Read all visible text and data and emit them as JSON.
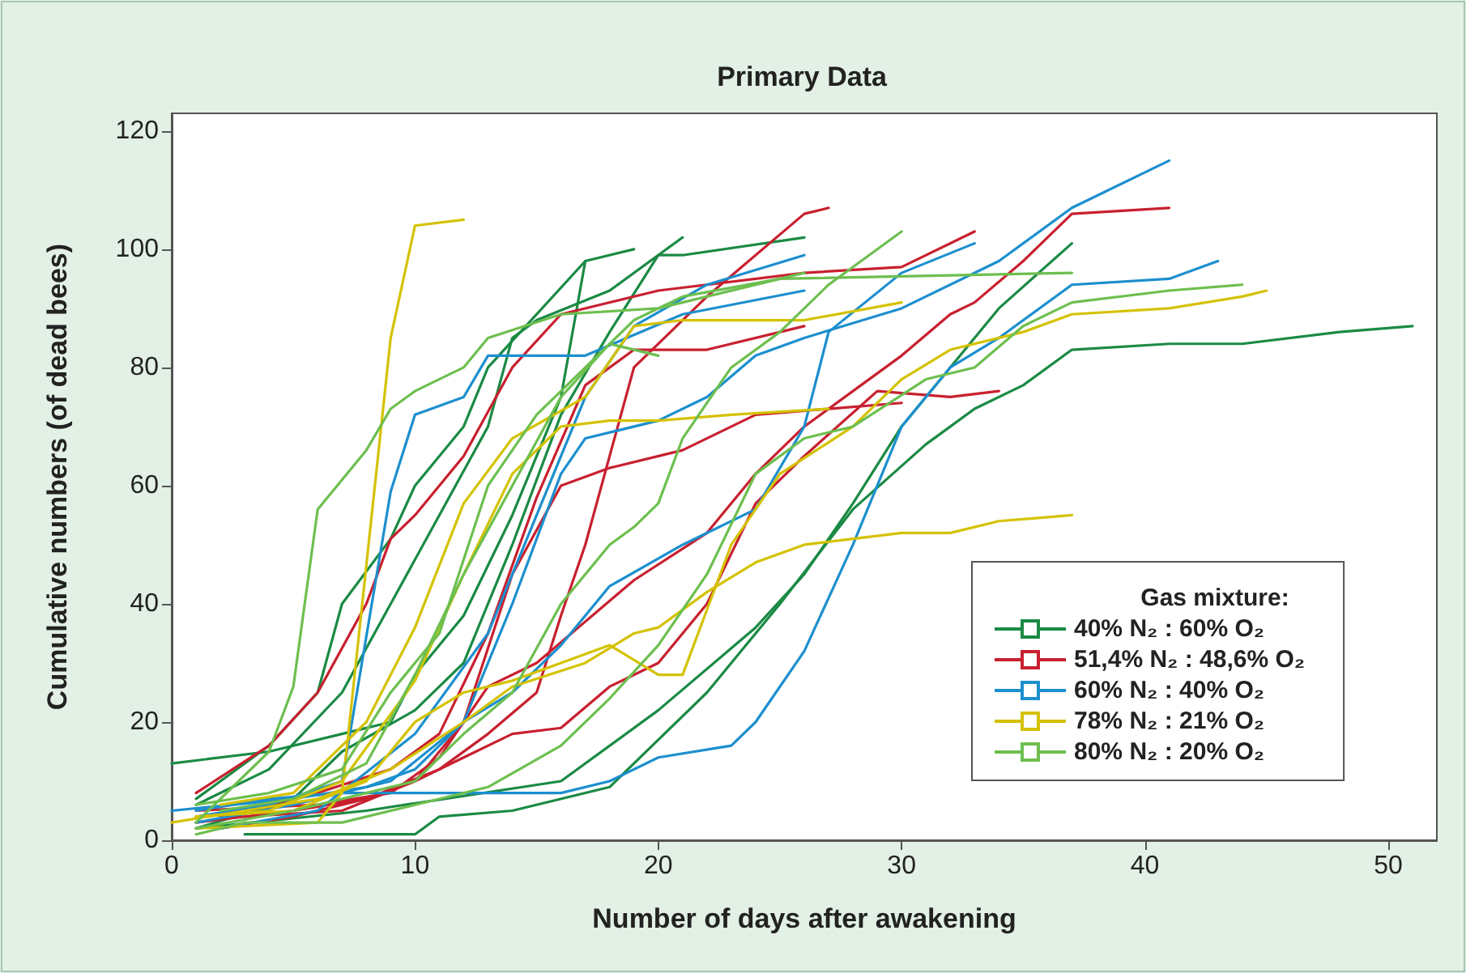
{
  "chart_data": {
    "type": "line",
    "title": "Primary Data",
    "xlabel": "Number of days after awakening",
    "ylabel": "Cumulative numbers (of dead bees)",
    "legend_title": "Gas mixture:",
    "legend": "bottom right",
    "grid": false,
    "line_style": "solid",
    "xlim": [
      0,
      52
    ],
    "xticks": [
      0,
      10,
      20,
      30,
      40,
      50
    ],
    "ylim": [
      0,
      123
    ],
    "yticks": [
      0,
      20,
      40,
      60,
      80,
      100,
      120
    ],
    "series": [
      {
        "name": "40% N₂ : 60% O₂",
        "color": "#1a8a44",
        "x": [
          3,
          10,
          11,
          14,
          18,
          20,
          22,
          25,
          28,
          31,
          33,
          35,
          37,
          41,
          44,
          48,
          51
        ],
        "values": [
          1,
          1,
          4,
          5,
          9,
          17,
          25,
          40,
          56,
          67,
          73,
          77,
          83,
          84,
          84,
          86,
          87
        ]
      },
      {
        "color": "#1a8a44",
        "x": [
          1,
          8,
          16,
          20,
          24,
          26,
          28,
          30,
          32,
          34,
          37
        ],
        "values": [
          2,
          5,
          10,
          22,
          36,
          45,
          57,
          70,
          80,
          90,
          101
        ]
      },
      {
        "color": "#1a8a44",
        "x": [
          0,
          4,
          7,
          9,
          10,
          12,
          14,
          16,
          17,
          19
        ],
        "values": [
          13,
          15,
          18,
          20,
          28,
          38,
          55,
          75,
          98,
          100
        ]
      },
      {
        "color": "#1a8a44",
        "x": [
          1,
          4,
          7,
          9,
          11,
          13,
          14,
          15,
          18,
          21
        ],
        "values": [
          6,
          12,
          25,
          40,
          55,
          70,
          85,
          88,
          93,
          102
        ]
      },
      {
        "color": "#1a8a44",
        "x": [
          1,
          5,
          7,
          10,
          12,
          14,
          16,
          18,
          20,
          21,
          26
        ],
        "values": [
          2,
          7,
          15,
          22,
          30,
          50,
          72,
          86,
          99,
          99,
          102
        ]
      },
      {
        "color": "#1a8a44",
        "x": [
          1,
          4,
          6,
          7,
          9,
          10,
          12,
          13,
          17
        ],
        "values": [
          7,
          16,
          25,
          40,
          51,
          60,
          70,
          80,
          98
        ]
      },
      {
        "name": "51,4% N₂ : 48,6% O₂",
        "color": "#c8202f",
        "x": [
          1,
          4,
          6,
          8,
          9,
          10,
          12,
          14,
          16,
          20,
          26,
          30,
          33
        ],
        "values": [
          8,
          16,
          25,
          40,
          51,
          55,
          65,
          80,
          89,
          93,
          96,
          97,
          103
        ]
      },
      {
        "color": "#c8202f",
        "x": [
          1,
          5,
          8,
          11,
          13,
          15,
          16,
          17,
          18,
          19,
          22,
          26,
          27
        ],
        "values": [
          3,
          5,
          7,
          12,
          18,
          25,
          38,
          50,
          65,
          80,
          92,
          106,
          107
        ]
      },
      {
        "color": "#c8202f",
        "x": [
          1,
          6,
          9,
          11,
          13,
          15,
          17,
          19,
          22,
          24,
          26,
          28,
          30,
          32,
          33,
          35,
          37,
          41
        ],
        "values": [
          5,
          6,
          8,
          14,
          26,
          30,
          37,
          44,
          52,
          62,
          70,
          76,
          82,
          89,
          91,
          98,
          106,
          107
        ]
      },
      {
        "color": "#c8202f",
        "x": [
          2,
          5,
          8,
          10,
          12,
          14,
          16,
          18,
          20,
          22,
          24,
          26,
          29,
          32,
          34
        ],
        "values": [
          2,
          4,
          7,
          10,
          14,
          18,
          19,
          26,
          30,
          40,
          57,
          65,
          76,
          75,
          76
        ]
      },
      {
        "color": "#c8202f",
        "x": [
          3,
          7,
          10,
          12,
          14,
          16,
          18,
          21,
          24,
          27,
          30
        ],
        "values": [
          4,
          5,
          10,
          20,
          45,
          60,
          63,
          66,
          72,
          73,
          74
        ]
      },
      {
        "color": "#c8202f",
        "x": [
          2,
          6,
          9,
          11,
          13,
          15,
          17,
          19,
          22,
          26
        ],
        "values": [
          4,
          8,
          12,
          18,
          35,
          58,
          77,
          83,
          83,
          87
        ]
      },
      {
        "name": "60% N₂ : 40% O₂",
        "color": "#1c8fce",
        "x": [
          1,
          4,
          7,
          11,
          16,
          18,
          20,
          23,
          24,
          26,
          28,
          30,
          32,
          34,
          37,
          41,
          43
        ],
        "values": [
          5,
          7,
          8,
          8,
          8,
          10,
          14,
          16,
          20,
          32,
          50,
          70,
          80,
          85,
          94,
          95,
          98
        ]
      },
      {
        "color": "#1c8fce",
        "x": [
          0,
          5,
          8,
          10,
          12,
          14,
          16,
          18,
          21,
          24,
          26,
          27,
          30,
          33
        ],
        "values": [
          5,
          7,
          9,
          12,
          20,
          25,
          33,
          43,
          50,
          56,
          70,
          86,
          96,
          101
        ]
      },
      {
        "color": "#1c8fce",
        "x": [
          1,
          4,
          7,
          9,
          10,
          12,
          13,
          17,
          21,
          26
        ],
        "values": [
          4,
          6,
          10,
          59,
          72,
          75,
          82,
          82,
          89,
          93
        ]
      },
      {
        "color": "#1c8fce",
        "x": [
          1,
          5,
          9,
          12,
          14,
          16,
          17,
          20,
          22,
          24,
          26,
          30,
          34,
          37,
          41
        ],
        "values": [
          3,
          6,
          10,
          20,
          40,
          62,
          68,
          71,
          75,
          82,
          85,
          90,
          98,
          107,
          115
        ]
      },
      {
        "color": "#1c8fce",
        "x": [
          2,
          6,
          10,
          13,
          15,
          17,
          19,
          22,
          26
        ],
        "values": [
          2,
          5,
          18,
          35,
          55,
          75,
          87,
          94,
          99
        ]
      },
      {
        "name": "78% N₂ : 21% O₂",
        "color": "#d4c200",
        "x": [
          1,
          6,
          7,
          9,
          10,
          12
        ],
        "values": [
          2,
          3,
          8,
          85,
          104,
          105
        ]
      },
      {
        "color": "#d4c200",
        "x": [
          0,
          3,
          6,
          9,
          12,
          14,
          17,
          19,
          20,
          22,
          24,
          26,
          28,
          30,
          32,
          34,
          37
        ],
        "values": [
          3,
          5,
          7,
          12,
          20,
          26,
          30,
          35,
          36,
          42,
          47,
          50,
          51,
          52,
          52,
          54,
          55
        ]
      },
      {
        "color": "#d4c200",
        "x": [
          1,
          5,
          8,
          10,
          12,
          14,
          16,
          18,
          20,
          21,
          23,
          25,
          28,
          30,
          32,
          35,
          37,
          41,
          44,
          45
        ],
        "values": [
          4,
          5,
          10,
          20,
          25,
          27,
          30,
          33,
          28,
          28,
          50,
          62,
          70,
          78,
          83,
          86,
          89,
          90,
          92,
          93
        ]
      },
      {
        "color": "#d4c200",
        "x": [
          2,
          5,
          8,
          10,
          12,
          14,
          17,
          19,
          21,
          26,
          30
        ],
        "values": [
          6,
          8,
          20,
          36,
          57,
          68,
          75,
          87,
          88,
          88,
          91
        ]
      },
      {
        "color": "#d4c200",
        "x": [
          1,
          4,
          7,
          10,
          12,
          14,
          16,
          18,
          20,
          23,
          27
        ],
        "values": [
          4,
          5,
          10,
          27,
          45,
          62,
          70,
          71,
          71,
          72,
          73
        ]
      },
      {
        "name": "80% N₂ : 20% O₂",
        "color": "#6dbf4f",
        "x": [
          1,
          4,
          5,
          6,
          8,
          9,
          10,
          12,
          13,
          16,
          20,
          26
        ],
        "values": [
          3,
          15,
          26,
          56,
          66,
          73,
          76,
          80,
          85,
          89,
          90,
          96
        ]
      },
      {
        "color": "#6dbf4f",
        "x": [
          1,
          3,
          7,
          10,
          13,
          16,
          18,
          20,
          22,
          24,
          26,
          28,
          31,
          33,
          35,
          37,
          41,
          44
        ],
        "values": [
          1,
          3,
          3,
          6,
          9,
          16,
          24,
          33,
          45,
          62,
          68,
          70,
          78,
          80,
          87,
          91,
          93,
          94
        ]
      },
      {
        "color": "#6dbf4f",
        "x": [
          1,
          5,
          8,
          10,
          12,
          14,
          16,
          18,
          19,
          20,
          21,
          23,
          25,
          27,
          30
        ],
        "values": [
          2,
          5,
          8,
          10,
          18,
          25,
          40,
          50,
          53,
          57,
          68,
          80,
          86,
          94,
          103
        ]
      },
      {
        "color": "#6dbf4f",
        "x": [
          2,
          5,
          8,
          10,
          12,
          14,
          16,
          18,
          20
        ],
        "values": [
          5,
          7,
          13,
          28,
          45,
          60,
          75,
          84,
          82
        ]
      },
      {
        "color": "#6dbf4f",
        "x": [
          1,
          4,
          7,
          9,
          11,
          13,
          15,
          17,
          19,
          21,
          25,
          37
        ],
        "values": [
          6,
          8,
          12,
          25,
          35,
          60,
          72,
          80,
          88,
          92,
          95,
          96
        ]
      }
    ]
  }
}
